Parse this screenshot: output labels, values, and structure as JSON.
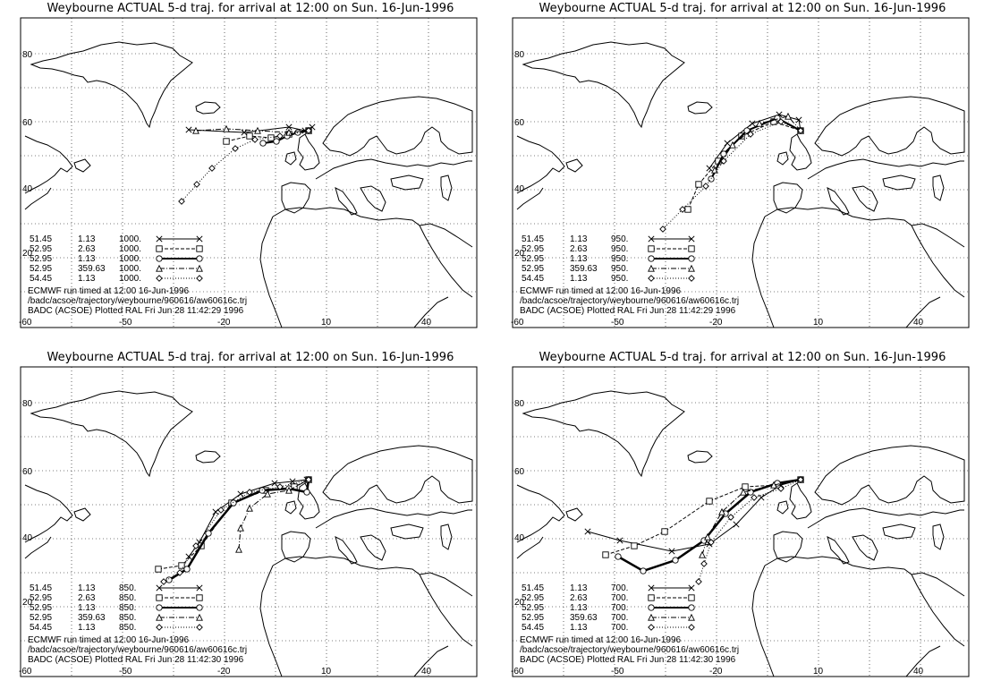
{
  "panels": [
    {
      "title": "Weybourne ACTUAL 5-d traj. for arrival at 12:00 on Sun. 16-Jun-1996",
      "pressure": "1000.",
      "footer": [
        "ECMWF run timed at 12:00 16-Jun-1996",
        "/badc/acsoe/trajectory/weybourne/960616/aw60616c.trj",
        "BADC (ACSOE) Plotted RAL Fri Jun 28 11:42:29 1996"
      ]
    },
    {
      "title": "Weybourne ACTUAL 5-d traj. for arrival at 12:00 on Sun. 16-Jun-1996",
      "pressure": "950.",
      "footer": [
        "ECMWF run timed at 12:00 16-Jun-1996",
        "/badc/acsoe/trajectory/weybourne/960616/aw60616c.trj",
        "BADC (ACSOE) Plotted RAL Fri Jun 28 11:42:29 1996"
      ]
    },
    {
      "title": "Weybourne ACTUAL 5-d traj. for arrival at 12:00 on Sun. 16-Jun-1996",
      "pressure": "850.",
      "footer": [
        "ECMWF run timed at 12:00 16-Jun-1996",
        "/badc/acsoe/trajectory/weybourne/960616/aw60616c.trj",
        "BADC (ACSOE) Plotted RAL Fri Jun 28 11:42:30 1996"
      ]
    },
    {
      "title": "Weybourne ACTUAL 5-d traj. for arrival at 12:00 on Sun. 16-Jun-1996",
      "pressure": "700.",
      "footer": [
        "ECMWF run timed at 12:00 16-Jun-1996",
        "/badc/acsoe/trajectory/weybourne/960616/aw60616c.trj",
        "BADC (ACSOE) Plotted RAL Fri Jun 28 11:42:30 1996"
      ]
    }
  ],
  "legend_rows": [
    {
      "lat": "51.45",
      "lon": "1.13"
    },
    {
      "lat": "52.95",
      "lon": "2.63"
    },
    {
      "lat": "52.95",
      "lon": "1.13"
    },
    {
      "lat": "52.95",
      "lon": "359.63"
    },
    {
      "lat": "54.45",
      "lon": "1.13"
    }
  ],
  "lat_labels": [
    "20",
    "40",
    "60",
    "80"
  ],
  "lon_labels": [
    "-60",
    "-50",
    "-20",
    "10",
    "40"
  ]
}
